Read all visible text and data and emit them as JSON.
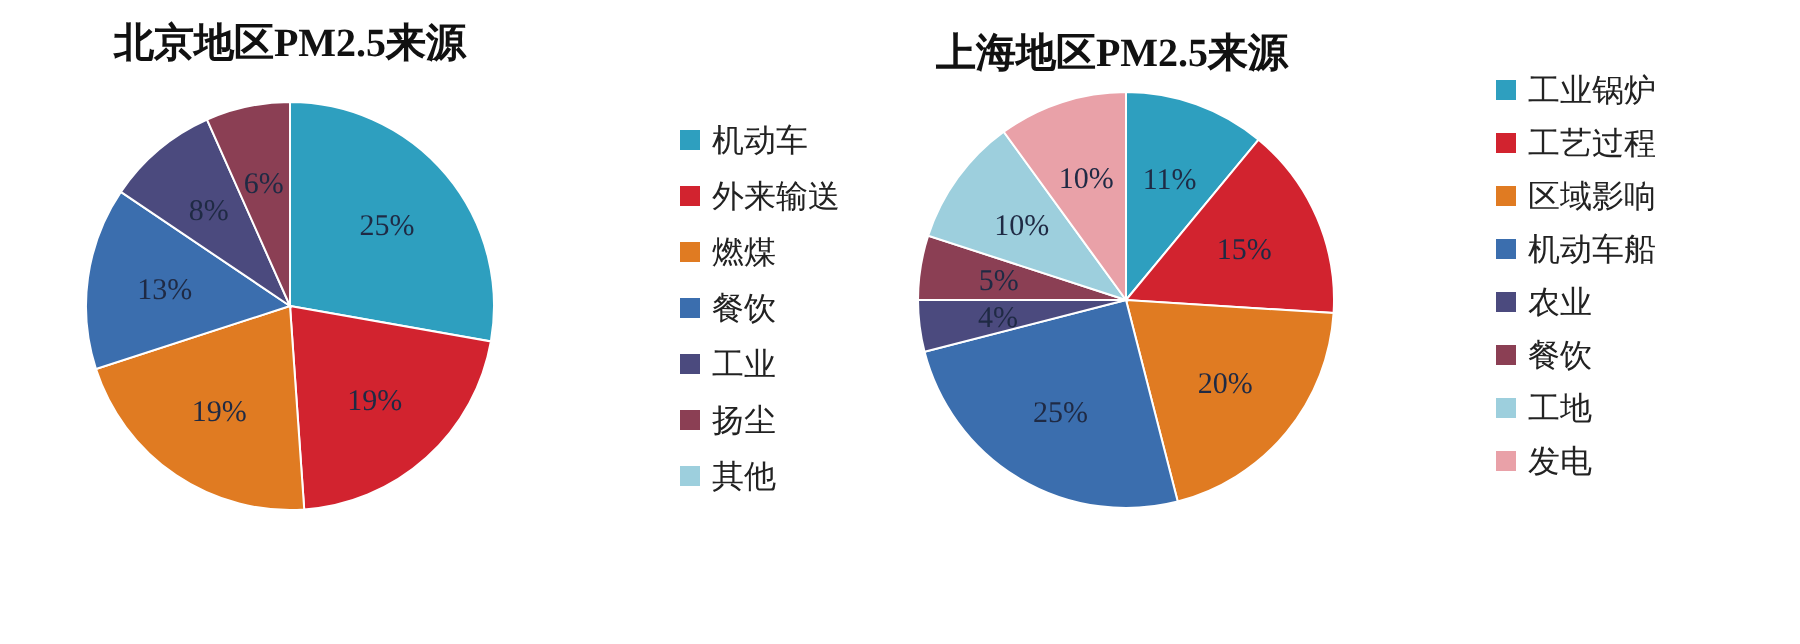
{
  "chart_data": [
    {
      "type": "pie",
      "title": "北京地区PM2.5来源",
      "categories": [
        "机动车",
        "外来输送",
        "燃煤",
        "餐饮",
        "工业",
        "扬尘",
        "其他"
      ],
      "values": [
        25,
        19,
        19,
        13,
        8,
        6,
        null
      ],
      "value_labels": [
        "25%",
        "19%",
        "19%",
        "13%",
        "8%",
        "6%",
        null
      ],
      "colors": [
        "#2e9fbf",
        "#d2232f",
        "#e07b22",
        "#3b6eae",
        "#4b4a7e",
        "#8b3f54",
        "#9dcfdd"
      ],
      "legend": "right"
    },
    {
      "type": "pie",
      "title": "上海地区PM2.5来源",
      "categories": [
        "工业锅炉",
        "工艺过程",
        "区域影响",
        "机动车船",
        "农业",
        "餐饮",
        "工地",
        "发电"
      ],
      "values": [
        11,
        15,
        20,
        25,
        4,
        5,
        10,
        10
      ],
      "value_labels": [
        "11%",
        "15%",
        "20%",
        "25%",
        "4%",
        "5%",
        "10%",
        "10%"
      ],
      "colors": [
        "#2e9fbf",
        "#d2232f",
        "#e07b22",
        "#3b6eae",
        "#4b4a7e",
        "#8b3f54",
        "#9dcfdd",
        "#e9a1a8"
      ],
      "legend": "right"
    }
  ]
}
